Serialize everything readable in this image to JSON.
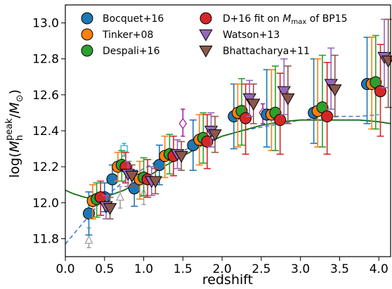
{
  "chart_data": {
    "type": "scatter",
    "xlabel": "redshift",
    "ylabel": "log(M_h^peak/M_⊙)",
    "ylabel_parts": {
      "prefix": "log(",
      "main": "M",
      "sub": "h",
      "sup": "peak",
      "slash": "/",
      "main2": "M",
      "sub2": "⊙",
      "suffix": ")"
    },
    "xlim": [
      0.0,
      4.15
    ],
    "ylim": [
      11.7,
      13.1
    ],
    "xticks": [
      "0.0",
      "0.5",
      "1.0",
      "1.5",
      "2.0",
      "2.5",
      "3.0",
      "3.5",
      "4.0"
    ],
    "xtick_values": [
      0.0,
      0.5,
      1.0,
      1.5,
      2.0,
      2.5,
      3.0,
      3.5,
      4.0
    ],
    "yticks": [
      "11.8",
      "12.0",
      "12.2",
      "12.4",
      "12.6",
      "12.8",
      "13.0"
    ],
    "ytick_values": [
      11.8,
      12.0,
      12.2,
      12.4,
      12.6,
      12.8,
      13.0
    ],
    "grid": false,
    "legend_position": "top",
    "legend_columns": 2,
    "series": [
      {
        "name": "Bocquet+16",
        "marker": "circle",
        "color": "#1f77b4",
        "points": [
          {
            "x": 0.3,
            "y": 11.94,
            "lo": 11.82,
            "hi": 12.06
          },
          {
            "x": 0.5,
            "y": 12.03,
            "lo": 11.95,
            "hi": 12.11
          },
          {
            "x": 0.6,
            "y": 12.13,
            "lo": 12.05,
            "hi": 12.21
          },
          {
            "x": 0.88,
            "y": 12.08,
            "lo": 11.98,
            "hi": 12.18
          },
          {
            "x": 1.2,
            "y": 12.21,
            "lo": 12.1,
            "hi": 12.32
          },
          {
            "x": 1.63,
            "y": 12.32,
            "lo": 12.18,
            "hi": 12.46
          },
          {
            "x": 2.15,
            "y": 12.48,
            "lo": 12.3,
            "hi": 12.66
          },
          {
            "x": 2.57,
            "y": 12.49,
            "lo": 12.31,
            "hi": 12.74
          },
          {
            "x": 3.17,
            "y": 12.5,
            "lo": 12.33,
            "hi": 12.8
          },
          {
            "x": 3.85,
            "y": 12.66,
            "lo": 12.44,
            "hi": 12.92
          }
        ]
      },
      {
        "name": "Tinker+08",
        "marker": "circle",
        "color": "#ff7f0e",
        "points": [
          {
            "x": 0.35,
            "y": 12.01,
            "lo": 11.91,
            "hi": 12.1
          },
          {
            "x": 0.67,
            "y": 12.2,
            "lo": 12.12,
            "hi": 12.28
          },
          {
            "x": 0.95,
            "y": 12.13,
            "lo": 12.02,
            "hi": 12.23
          },
          {
            "x": 1.27,
            "y": 12.26,
            "lo": 12.14,
            "hi": 12.37
          },
          {
            "x": 1.71,
            "y": 12.35,
            "lo": 12.21,
            "hi": 12.49
          },
          {
            "x": 2.2,
            "y": 12.5,
            "lo": 12.31,
            "hi": 12.66
          },
          {
            "x": 2.63,
            "y": 12.49,
            "lo": 12.29,
            "hi": 12.74
          },
          {
            "x": 3.22,
            "y": 12.51,
            "lo": 12.31,
            "hi": 12.8
          },
          {
            "x": 3.91,
            "y": 12.66,
            "lo": 12.41,
            "hi": 12.92
          }
        ]
      },
      {
        "name": "Despali+16",
        "marker": "circle",
        "color": "#2ca02c",
        "points": [
          {
            "x": 0.4,
            "y": 12.02,
            "lo": 11.92,
            "hi": 12.11
          },
          {
            "x": 0.72,
            "y": 12.21,
            "lo": 12.12,
            "hi": 12.29
          },
          {
            "x": 1.0,
            "y": 12.14,
            "lo": 12.04,
            "hi": 12.25
          },
          {
            "x": 1.33,
            "y": 12.27,
            "lo": 12.16,
            "hi": 12.38
          },
          {
            "x": 1.76,
            "y": 12.36,
            "lo": 12.22,
            "hi": 12.5
          },
          {
            "x": 2.25,
            "y": 12.51,
            "lo": 12.32,
            "hi": 12.69
          },
          {
            "x": 2.68,
            "y": 12.5,
            "lo": 12.29,
            "hi": 12.76
          },
          {
            "x": 3.28,
            "y": 12.53,
            "lo": 12.31,
            "hi": 12.82
          },
          {
            "x": 3.96,
            "y": 12.67,
            "lo": 12.41,
            "hi": 12.93
          }
        ]
      },
      {
        "name": "D+16 fit on M_max of BP15",
        "marker": "circle",
        "color": "#d62728",
        "points": [
          {
            "x": 0.45,
            "y": 12.03,
            "lo": 11.93,
            "hi": 12.12
          },
          {
            "x": 0.77,
            "y": 12.2,
            "lo": 12.11,
            "hi": 12.28
          },
          {
            "x": 1.05,
            "y": 12.13,
            "lo": 12.03,
            "hi": 12.24
          },
          {
            "x": 1.38,
            "y": 12.26,
            "lo": 12.15,
            "hi": 12.37
          },
          {
            "x": 1.81,
            "y": 12.34,
            "lo": 12.19,
            "hi": 12.49
          },
          {
            "x": 2.3,
            "y": 12.47,
            "lo": 12.27,
            "hi": 12.66
          },
          {
            "x": 2.74,
            "y": 12.46,
            "lo": 12.27,
            "hi": 12.72
          },
          {
            "x": 3.34,
            "y": 12.48,
            "lo": 12.27,
            "hi": 12.78
          },
          {
            "x": 4.02,
            "y": 12.62,
            "lo": 12.37,
            "hi": 12.88
          }
        ]
      },
      {
        "name": "Watson+13",
        "marker": "triangle-down",
        "color": "#9467bd",
        "points": [
          {
            "x": 0.52,
            "y": 11.98,
            "lo": 11.91,
            "hi": 12.04
          },
          {
            "x": 0.8,
            "y": 12.16,
            "lo": 12.09,
            "hi": 12.23
          },
          {
            "x": 1.1,
            "y": 12.12,
            "lo": 12.04,
            "hi": 12.2
          },
          {
            "x": 1.43,
            "y": 12.27,
            "lo": 12.19,
            "hi": 12.35
          },
          {
            "x": 1.86,
            "y": 12.4,
            "lo": 12.31,
            "hi": 12.5
          },
          {
            "x": 2.35,
            "y": 12.58,
            "lo": 12.48,
            "hi": 12.68
          },
          {
            "x": 2.79,
            "y": 12.62,
            "lo": 12.49,
            "hi": 12.8
          },
          {
            "x": 3.39,
            "y": 12.66,
            "lo": 12.52,
            "hi": 12.86
          },
          {
            "x": 4.07,
            "y": 12.81,
            "lo": 12.64,
            "hi": 13.02
          }
        ]
      },
      {
        "name": "Bhattacharya+11",
        "marker": "triangle-down",
        "color": "#8c564b",
        "points": [
          {
            "x": 0.57,
            "y": 11.97,
            "lo": 11.91,
            "hi": 12.03
          },
          {
            "x": 0.85,
            "y": 12.15,
            "lo": 12.09,
            "hi": 12.21
          },
          {
            "x": 1.15,
            "y": 12.12,
            "lo": 12.05,
            "hi": 12.19
          },
          {
            "x": 1.48,
            "y": 12.26,
            "lo": 12.18,
            "hi": 12.34
          },
          {
            "x": 1.91,
            "y": 12.38,
            "lo": 12.28,
            "hi": 12.48
          },
          {
            "x": 2.4,
            "y": 12.55,
            "lo": 12.44,
            "hi": 12.66
          },
          {
            "x": 2.84,
            "y": 12.58,
            "lo": 12.44,
            "hi": 12.76
          },
          {
            "x": 3.44,
            "y": 12.63,
            "lo": 12.48,
            "hi": 12.82
          },
          {
            "x": 4.12,
            "y": 12.79,
            "lo": 12.53,
            "hi": 13.02
          }
        ]
      }
    ],
    "extra_points": [
      {
        "marker": "triangle-up-open",
        "color": "#a0a0a0",
        "points": [
          {
            "x": 0.3,
            "y": 11.79,
            "lo": 11.75,
            "hi": 11.86
          },
          {
            "x": 0.7,
            "y": 12.03,
            "lo": 11.97,
            "hi": 12.09
          },
          {
            "x": 1.0,
            "y": 12.05,
            "lo": 11.99,
            "hi": 12.12
          }
        ]
      },
      {
        "marker": "square-open",
        "color": "#17becf",
        "points": [
          {
            "x": 0.75,
            "y": 12.3,
            "lo": 12.26,
            "hi": 12.33
          }
        ]
      },
      {
        "marker": "diamond-open",
        "color": "#a020a0",
        "points": [
          {
            "x": 1.5,
            "y": 12.44,
            "lo": 12.37,
            "hi": 12.52
          },
          {
            "x": 2.52,
            "y": 12.5,
            "lo": 12.44,
            "hi": 12.55
          }
        ]
      }
    ],
    "curves": [
      {
        "style": "dashed",
        "color": "#4a74d9",
        "x": [
          0.0,
          0.25,
          0.5,
          0.75,
          1.0,
          1.25,
          1.5,
          1.75,
          2.0,
          2.25,
          2.5,
          2.75,
          3.0,
          3.25,
          3.5,
          3.75,
          4.0
        ],
        "y": [
          11.77,
          11.9,
          12.03,
          12.12,
          12.19,
          12.25,
          12.29,
          12.33,
          12.37,
          12.4,
          12.42,
          12.44,
          12.46,
          12.47,
          12.48,
          12.48,
          12.49
        ]
      },
      {
        "style": "solid",
        "color": "#1a6e1a",
        "x": [
          0.0,
          0.1,
          0.25,
          0.4,
          0.5,
          0.75,
          1.0,
          1.25,
          1.5,
          1.75,
          2.0,
          2.25,
          2.5,
          2.75,
          3.0,
          3.25,
          3.5,
          3.75,
          4.0,
          4.15
        ],
        "y": [
          12.07,
          12.05,
          12.03,
          12.02,
          12.03,
          12.07,
          12.13,
          12.2,
          12.26,
          12.32,
          12.37,
          12.4,
          12.43,
          12.45,
          12.46,
          12.46,
          12.46,
          12.46,
          12.45,
          12.44
        ]
      }
    ]
  }
}
